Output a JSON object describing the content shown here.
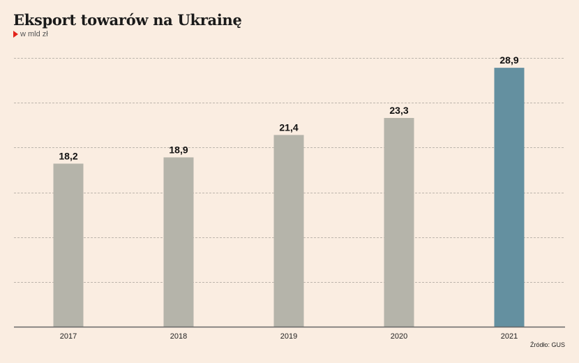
{
  "title": "Eksport towarów na Ukrainę",
  "subtitle": "w mld zł",
  "source": "Źródło: GUS",
  "colors": {
    "background": "#faede1",
    "bar_default": "#b5b4aa",
    "bar_highlight": "#6490a0",
    "gridline": "#a9a29a",
    "axis": "#666666"
  },
  "chart_data": {
    "type": "bar",
    "categories": [
      "2017",
      "2018",
      "2019",
      "2020",
      "2021"
    ],
    "values": [
      18.2,
      18.9,
      21.4,
      23.3,
      28.9
    ],
    "value_labels": [
      "18,2",
      "18,9",
      "21,4",
      "23,3",
      "28,9"
    ],
    "highlight_index": 4,
    "title": "Eksport towarów na Ukrainę",
    "subtitle": "w mld zł",
    "xlabel": "",
    "ylabel": "",
    "ylim": [
      0,
      30
    ],
    "grid": true
  }
}
